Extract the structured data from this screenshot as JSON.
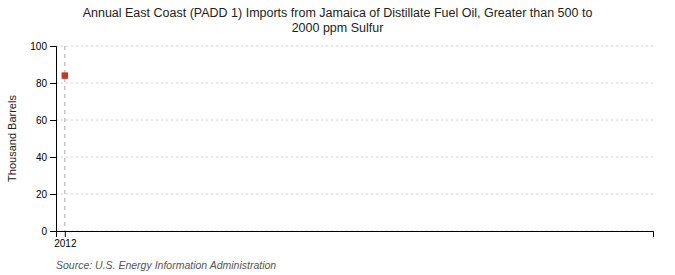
{
  "chart_data": {
    "type": "scatter",
    "title": "Annual East Coast (PADD 1) Imports from Jamaica of Distillate Fuel Oil, Greater than 500 to\n2000 ppm Sulfur",
    "ylabel": "Thousand Barrels",
    "x": [
      2012
    ],
    "values": [
      84
    ],
    "color": "#c0392b",
    "marker": "square",
    "xlim": [
      2011.85,
      2022.0
    ],
    "xticks": [
      2012
    ],
    "ylim": [
      0,
      100
    ],
    "yticks": [
      0,
      20,
      40,
      60,
      80,
      100
    ],
    "grid": true,
    "annotations": [
      {
        "x": 2012,
        "line_style": "dashed",
        "color": "#aaaaaa"
      },
      {
        "text": "Source: U.S. Energy Information Administration"
      }
    ]
  }
}
